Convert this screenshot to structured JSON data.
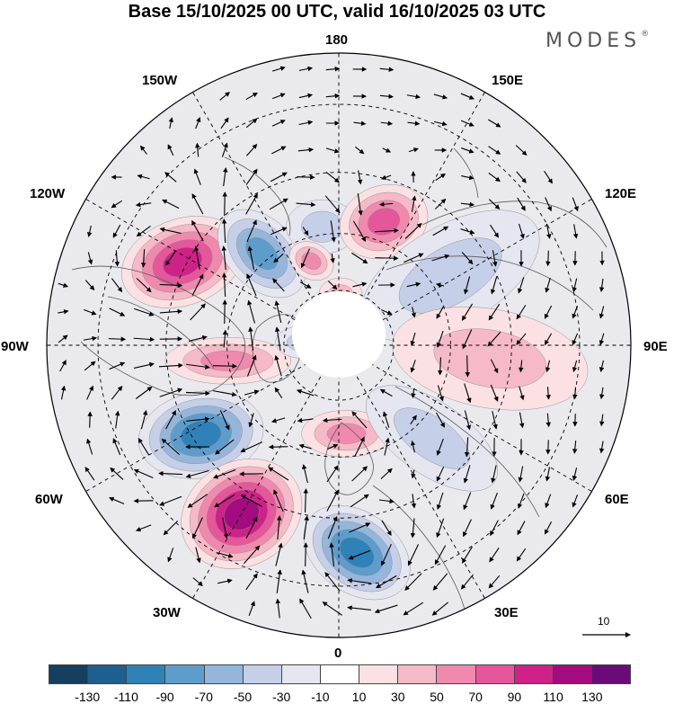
{
  "title": "Base 15/10/2025 00 UTC, valid 16/10/2025 03 UTC",
  "brand": "MODES",
  "brand_mark": "®",
  "longitude_labels": {
    "top": "180",
    "top_left": "150W",
    "top_right": "150E",
    "upper_left": "120W",
    "upper_right": "120E",
    "left": "90W",
    "right": "90E",
    "lower_left": "60W",
    "lower_right": "60E",
    "bottom_left": "30W",
    "bottom_right": "30E",
    "bottom": "0"
  },
  "reference_vector": {
    "label": "10"
  },
  "colors": {
    "neg_130": "#163e5e",
    "neg_110": "#1d5f8f",
    "neg_90": "#2f82b8",
    "neg_70": "#5e9ccc",
    "neg_50": "#95b6da",
    "neg_30": "#c6cfe8",
    "neg_10": "#e6e6f0",
    "zero": "#ffffff",
    "pos_10": "#fbe1e3",
    "pos_30": "#f6b9c8",
    "pos_50": "#ef89ae",
    "pos_70": "#e5579a",
    "pos_90": "#cf2288",
    "pos_110": "#a30c7e",
    "pos_130": "#6b0b7a"
  },
  "colorbar": {
    "segments": [
      "#163e5e",
      "#1d5f8f",
      "#2f82b8",
      "#5e9ccc",
      "#95b6da",
      "#c6cfe8",
      "#e6e6f0",
      "#ffffff",
      "#fbe1e3",
      "#f6b9c8",
      "#ef89ae",
      "#e5579a",
      "#cf2288",
      "#a30c7e",
      "#6b0b7a"
    ],
    "ticks": [
      "-130",
      "-110",
      "-90",
      "-70",
      "-50",
      "-30",
      "-10",
      "10",
      "30",
      "50",
      "70",
      "90",
      "110",
      "130"
    ]
  },
  "anomalies": [
    {
      "id": "pos-120w",
      "value": 90,
      "lon": -118,
      "lat": 44,
      "r1": 70,
      "r2": 48,
      "rot": -20
    },
    {
      "id": "neg-140w",
      "value": -70,
      "lon": -140,
      "lat": 58,
      "r1": 58,
      "r2": 38,
      "rot": 45
    },
    {
      "id": "neg-170w",
      "value": -30,
      "lon": -172,
      "lat": 58,
      "r1": 40,
      "r2": 30,
      "rot": 0
    },
    {
      "id": "pos-165w",
      "value": 50,
      "lon": -162,
      "lat": 66,
      "r1": 26,
      "r2": 20,
      "rot": 30
    },
    {
      "id": "pos-160e",
      "value": 70,
      "lon": 160,
      "lat": 55,
      "r1": 50,
      "r2": 40,
      "rot": -20
    },
    {
      "id": "neg-130e",
      "value": -30,
      "lon": 122,
      "lat": 55,
      "r1": 110,
      "r2": 55,
      "rot": -30
    },
    {
      "id": "pos-90e",
      "value": 30,
      "lon": 85,
      "lat": 50,
      "r1": 110,
      "r2": 55,
      "rot": 10
    },
    {
      "id": "pos-85w",
      "value": 50,
      "lon": -82,
      "lat": 60,
      "r1": 70,
      "r2": 26,
      "rot": 0
    },
    {
      "id": "neg-60w",
      "value": -90,
      "lon": -57,
      "lat": 47,
      "r1": 70,
      "r2": 48,
      "rot": -10
    },
    {
      "id": "pos-30w",
      "value": 110,
      "lon": -30,
      "lat": 40,
      "r1": 70,
      "r2": 58,
      "rot": -30
    },
    {
      "id": "neg-0",
      "value": -90,
      "lon": 5,
      "lat": 37,
      "r1": 65,
      "r2": 45,
      "rot": 35
    },
    {
      "id": "pos-10e",
      "value": 50,
      "lon": 5,
      "lat": 66,
      "r1": 50,
      "r2": 26,
      "rot": 0
    },
    {
      "id": "neg-45e",
      "value": -30,
      "lon": 45,
      "lat": 55,
      "r1": 85,
      "r2": 40,
      "rot": 35
    },
    {
      "id": "pos-180",
      "value": 30,
      "lon": 178,
      "lat": 76,
      "r1": 24,
      "r2": 18,
      "rot": 0
    },
    {
      "id": "neg-80w-hi",
      "value": -30,
      "lon": -95,
      "lat": 80,
      "r1": 30,
      "r2": 18,
      "rot": 0
    }
  ]
}
